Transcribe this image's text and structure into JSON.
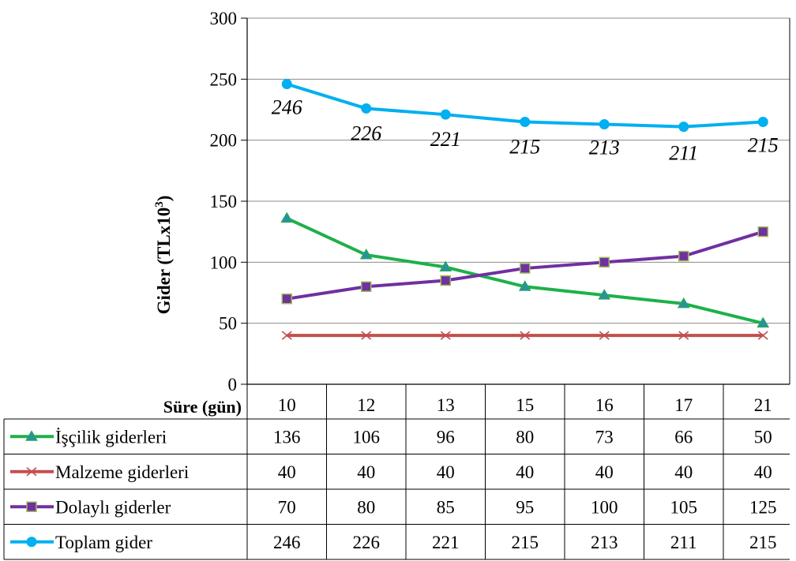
{
  "chart_data": {
    "type": "line",
    "ylabel": "Gider (TLx10",
    "ylabel_sup": "3",
    "ylabel_close": ")",
    "x_header": "Süre (gün)",
    "categories": [
      "10",
      "12",
      "13",
      "15",
      "16",
      "17",
      "21"
    ],
    "ylim": [
      0,
      300
    ],
    "y_ticks": [
      "0",
      "50",
      "100",
      "150",
      "200",
      "250",
      "300"
    ],
    "grid": true,
    "legend": "data table",
    "series": [
      {
        "name": "İşçilik giderleri",
        "values": [
          136,
          106,
          96,
          80,
          73,
          66,
          50
        ],
        "color": "#1EB04A",
        "marker": "triangle",
        "marker_fill": "#2E8FA0"
      },
      {
        "name": "Malzeme giderleri",
        "values": [
          40,
          40,
          40,
          40,
          40,
          40,
          40
        ],
        "color": "#C0504D",
        "marker": "x",
        "marker_fill": "#C0504D"
      },
      {
        "name": "Dolaylı giderler",
        "values": [
          70,
          80,
          85,
          95,
          100,
          105,
          125
        ],
        "color": "#7030A0",
        "marker": "square",
        "marker_fill": "#7030A0"
      },
      {
        "name": "Toplam gider",
        "values": [
          246,
          226,
          221,
          215,
          213,
          211,
          215
        ],
        "color": "#00B0F0",
        "marker": "circle",
        "marker_fill": "#00B0F0",
        "data_labels": [
          "246",
          "226",
          "221",
          "215",
          "213",
          "211",
          "215"
        ]
      }
    ]
  }
}
